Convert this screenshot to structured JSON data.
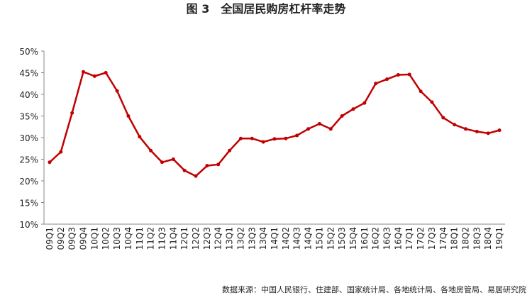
{
  "chart_data": {
    "type": "line",
    "title": "图 3　全国居民购房杠杆率走势",
    "source": "数据来源：中国人民银行、住建部、国家统计局、各地统计局、各地房管局、易居研究院",
    "categories": [
      "09Q1",
      "09Q2",
      "09Q3",
      "09Q4",
      "10Q1",
      "10Q2",
      "10Q3",
      "10Q4",
      "11Q1",
      "11Q2",
      "11Q3",
      "11Q4",
      "12Q1",
      "12Q2",
      "12Q3",
      "12Q4",
      "13Q1",
      "13Q2",
      "13Q3",
      "13Q4",
      "14Q1",
      "14Q2",
      "14Q3",
      "14Q4",
      "15Q1",
      "15Q2",
      "15Q3",
      "15Q4",
      "16Q1",
      "16Q2",
      "16Q3",
      "16Q4",
      "17Q1",
      "17Q2",
      "17Q3",
      "17Q4",
      "18Q1",
      "18Q2",
      "18Q3",
      "18Q4",
      "19Q1"
    ],
    "values": [
      24.3,
      26.7,
      35.7,
      45.2,
      44.2,
      45.0,
      40.8,
      35.0,
      30.2,
      27.0,
      24.3,
      25.0,
      22.4,
      21.1,
      23.5,
      23.8,
      27.0,
      29.8,
      29.8,
      29.0,
      29.7,
      29.8,
      30.5,
      32.0,
      33.2,
      32.0,
      35.0,
      36.6,
      38.0,
      42.5,
      43.5,
      44.5,
      44.6,
      40.7,
      38.2,
      34.6,
      33.0,
      32.0,
      31.4,
      31.0,
      31.7
    ],
    "color": "#c00000",
    "ylim": [
      10,
      50
    ],
    "yticks": [
      {
        "value": 10,
        "label": "10%"
      },
      {
        "value": 15,
        "label": "15%"
      },
      {
        "value": 20,
        "label": "20%"
      },
      {
        "value": 25,
        "label": "25%"
      },
      {
        "value": 30,
        "label": "30%"
      },
      {
        "value": 35,
        "label": "35%"
      },
      {
        "value": 40,
        "label": "40%"
      },
      {
        "value": 45,
        "label": "45%"
      },
      {
        "value": 50,
        "label": "50%"
      }
    ],
    "grid": false
  }
}
